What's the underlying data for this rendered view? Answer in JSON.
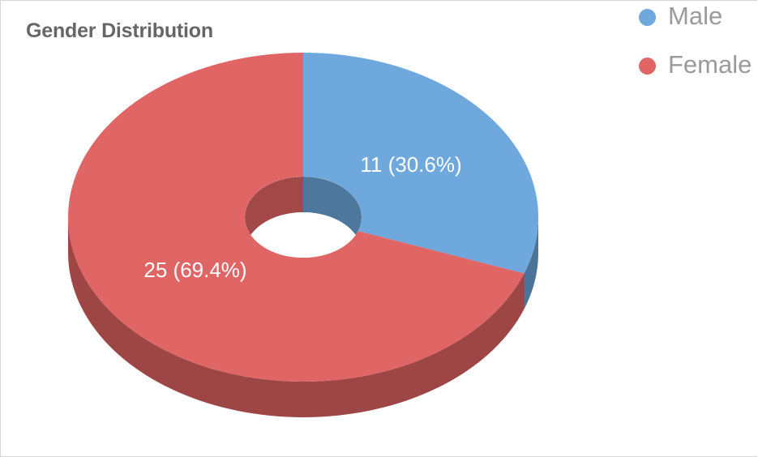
{
  "chart_data": {
    "type": "pie",
    "title": "Gender Distribution",
    "categories": [
      "Male",
      "Female"
    ],
    "values": [
      11,
      25
    ],
    "data_labels": [
      "11 (30.6%)",
      "25 (69.4%)"
    ],
    "colors": [
      "#6fa8dc",
      "#e06666"
    ],
    "side_colors": [
      "#4c7499",
      "#9e4545"
    ],
    "hole_side_colors": [
      "#4e779e",
      "#a34848"
    ],
    "style": "3d-donut",
    "legend": "top-right"
  }
}
